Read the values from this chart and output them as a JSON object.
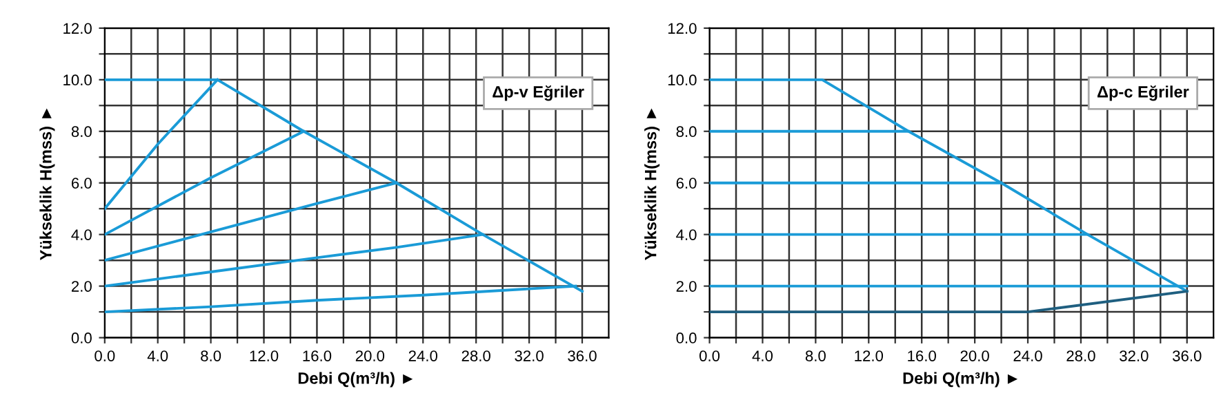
{
  "chart_data": [
    {
      "type": "line",
      "xlabel": "Debi Q(m³/h) ►",
      "ylabel": "Yükseklik H(mss) ►",
      "annotations": [
        "Δp-v Eğriler"
      ],
      "xlim": [
        0,
        38
      ],
      "ylim": [
        0,
        12
      ],
      "grid": true,
      "marker": "none",
      "line_style": "solid",
      "xticks": [
        {
          "value": 0,
          "label": "0.0"
        },
        {
          "value": 2,
          "label": null
        },
        {
          "value": 4,
          "label": "4.0"
        },
        {
          "value": 6,
          "label": null
        },
        {
          "value": 8,
          "label": "8.0"
        },
        {
          "value": 10,
          "label": null
        },
        {
          "value": 12,
          "label": "12.0"
        },
        {
          "value": 14,
          "label": null
        },
        {
          "value": 16,
          "label": "16.0"
        },
        {
          "value": 18,
          "label": null
        },
        {
          "value": 20,
          "label": "20.0"
        },
        {
          "value": 22,
          "label": null
        },
        {
          "value": 24,
          "label": "24.0"
        },
        {
          "value": 26,
          "label": null
        },
        {
          "value": 28,
          "label": "28.0"
        },
        {
          "value": 30,
          "label": null
        },
        {
          "value": 32,
          "label": "32.0"
        },
        {
          "value": 34,
          "label": null
        },
        {
          "value": 36,
          "label": "36.0"
        }
      ],
      "yticks": [
        {
          "value": 0,
          "label": "0.0"
        },
        {
          "value": 1,
          "label": null
        },
        {
          "value": 2,
          "label": "2.0"
        },
        {
          "value": 3,
          "label": null
        },
        {
          "value": 4,
          "label": "4.0"
        },
        {
          "value": 5,
          "label": null
        },
        {
          "value": 6,
          "label": "6.0"
        },
        {
          "value": 7,
          "label": null
        },
        {
          "value": 8,
          "label": "8.0"
        },
        {
          "value": 9,
          "label": null
        },
        {
          "value": 10,
          "label": "10.0"
        },
        {
          "value": 11,
          "label": null
        },
        {
          "value": 12,
          "label": "12.0"
        }
      ],
      "series": [
        {
          "color": "#1a9bd7",
          "x": [
            0,
            8.5,
            15,
            22,
            28.5,
            36
          ],
          "values": [
            10,
            10,
            8,
            6,
            4,
            1.8
          ]
        },
        {
          "color": "#1a9bd7",
          "x": [
            0,
            4,
            8.5
          ],
          "values": [
            5,
            7.5,
            10
          ]
        },
        {
          "color": "#1a9bd7",
          "x": [
            0,
            8,
            15
          ],
          "values": [
            4,
            6.2,
            8
          ]
        },
        {
          "color": "#1a9bd7",
          "x": [
            0,
            8,
            16,
            22
          ],
          "values": [
            3,
            4.1,
            5.2,
            6
          ]
        },
        {
          "color": "#1a9bd7",
          "x": [
            0,
            8,
            16,
            22,
            28.5
          ],
          "values": [
            2,
            2.55,
            3.1,
            3.5,
            4
          ]
        },
        {
          "color": "#1a9bd7",
          "x": [
            0,
            8,
            16,
            24,
            35.5
          ],
          "values": [
            1,
            1.2,
            1.45,
            1.65,
            2
          ]
        }
      ]
    },
    {
      "type": "line",
      "xlabel": "Debi Q(m³/h) ►",
      "ylabel": "Yükseklik H(mss) ►",
      "annotations": [
        "Δp-c Eğriler"
      ],
      "xlim": [
        0,
        38
      ],
      "ylim": [
        0,
        12
      ],
      "grid": true,
      "marker": "none",
      "line_style": "solid",
      "xticks": [
        {
          "value": 0,
          "label": "0.0"
        },
        {
          "value": 2,
          "label": null
        },
        {
          "value": 4,
          "label": "4.0"
        },
        {
          "value": 6,
          "label": null
        },
        {
          "value": 8,
          "label": "8.0"
        },
        {
          "value": 10,
          "label": null
        },
        {
          "value": 12,
          "label": "12.0"
        },
        {
          "value": 14,
          "label": null
        },
        {
          "value": 16,
          "label": "16.0"
        },
        {
          "value": 18,
          "label": null
        },
        {
          "value": 20,
          "label": "20.0"
        },
        {
          "value": 22,
          "label": null
        },
        {
          "value": 24,
          "label": "24.0"
        },
        {
          "value": 26,
          "label": null
        },
        {
          "value": 28,
          "label": "28.0"
        },
        {
          "value": 30,
          "label": null
        },
        {
          "value": 32,
          "label": "32.0"
        },
        {
          "value": 34,
          "label": null
        },
        {
          "value": 36,
          "label": "36.0"
        }
      ],
      "yticks": [
        {
          "value": 0,
          "label": "0.0"
        },
        {
          "value": 1,
          "label": null
        },
        {
          "value": 2,
          "label": "2.0"
        },
        {
          "value": 3,
          "label": null
        },
        {
          "value": 4,
          "label": "4.0"
        },
        {
          "value": 5,
          "label": null
        },
        {
          "value": 6,
          "label": "6.0"
        },
        {
          "value": 7,
          "label": null
        },
        {
          "value": 8,
          "label": "8.0"
        },
        {
          "value": 9,
          "label": null
        },
        {
          "value": 10,
          "label": "10.0"
        },
        {
          "value": 11,
          "label": null
        },
        {
          "value": 12,
          "label": "12.0"
        }
      ],
      "series": [
        {
          "color": "#1a9bd7",
          "x": [
            0,
            8.5,
            15,
            22,
            28.5,
            36
          ],
          "values": [
            10,
            10,
            8,
            6,
            4,
            1.8
          ]
        },
        {
          "color": "#1a9bd7",
          "x": [
            0,
            15
          ],
          "values": [
            8,
            8
          ]
        },
        {
          "color": "#1a9bd7",
          "x": [
            0,
            22
          ],
          "values": [
            6,
            6
          ]
        },
        {
          "color": "#1a9bd7",
          "x": [
            0,
            28.5
          ],
          "values": [
            4,
            4
          ]
        },
        {
          "color": "#1a9bd7",
          "x": [
            0,
            36
          ],
          "values": [
            2,
            2
          ]
        },
        {
          "color": "#1f5f80",
          "x": [
            0,
            24,
            36
          ],
          "values": [
            1,
            1,
            1.8
          ]
        }
      ]
    }
  ]
}
